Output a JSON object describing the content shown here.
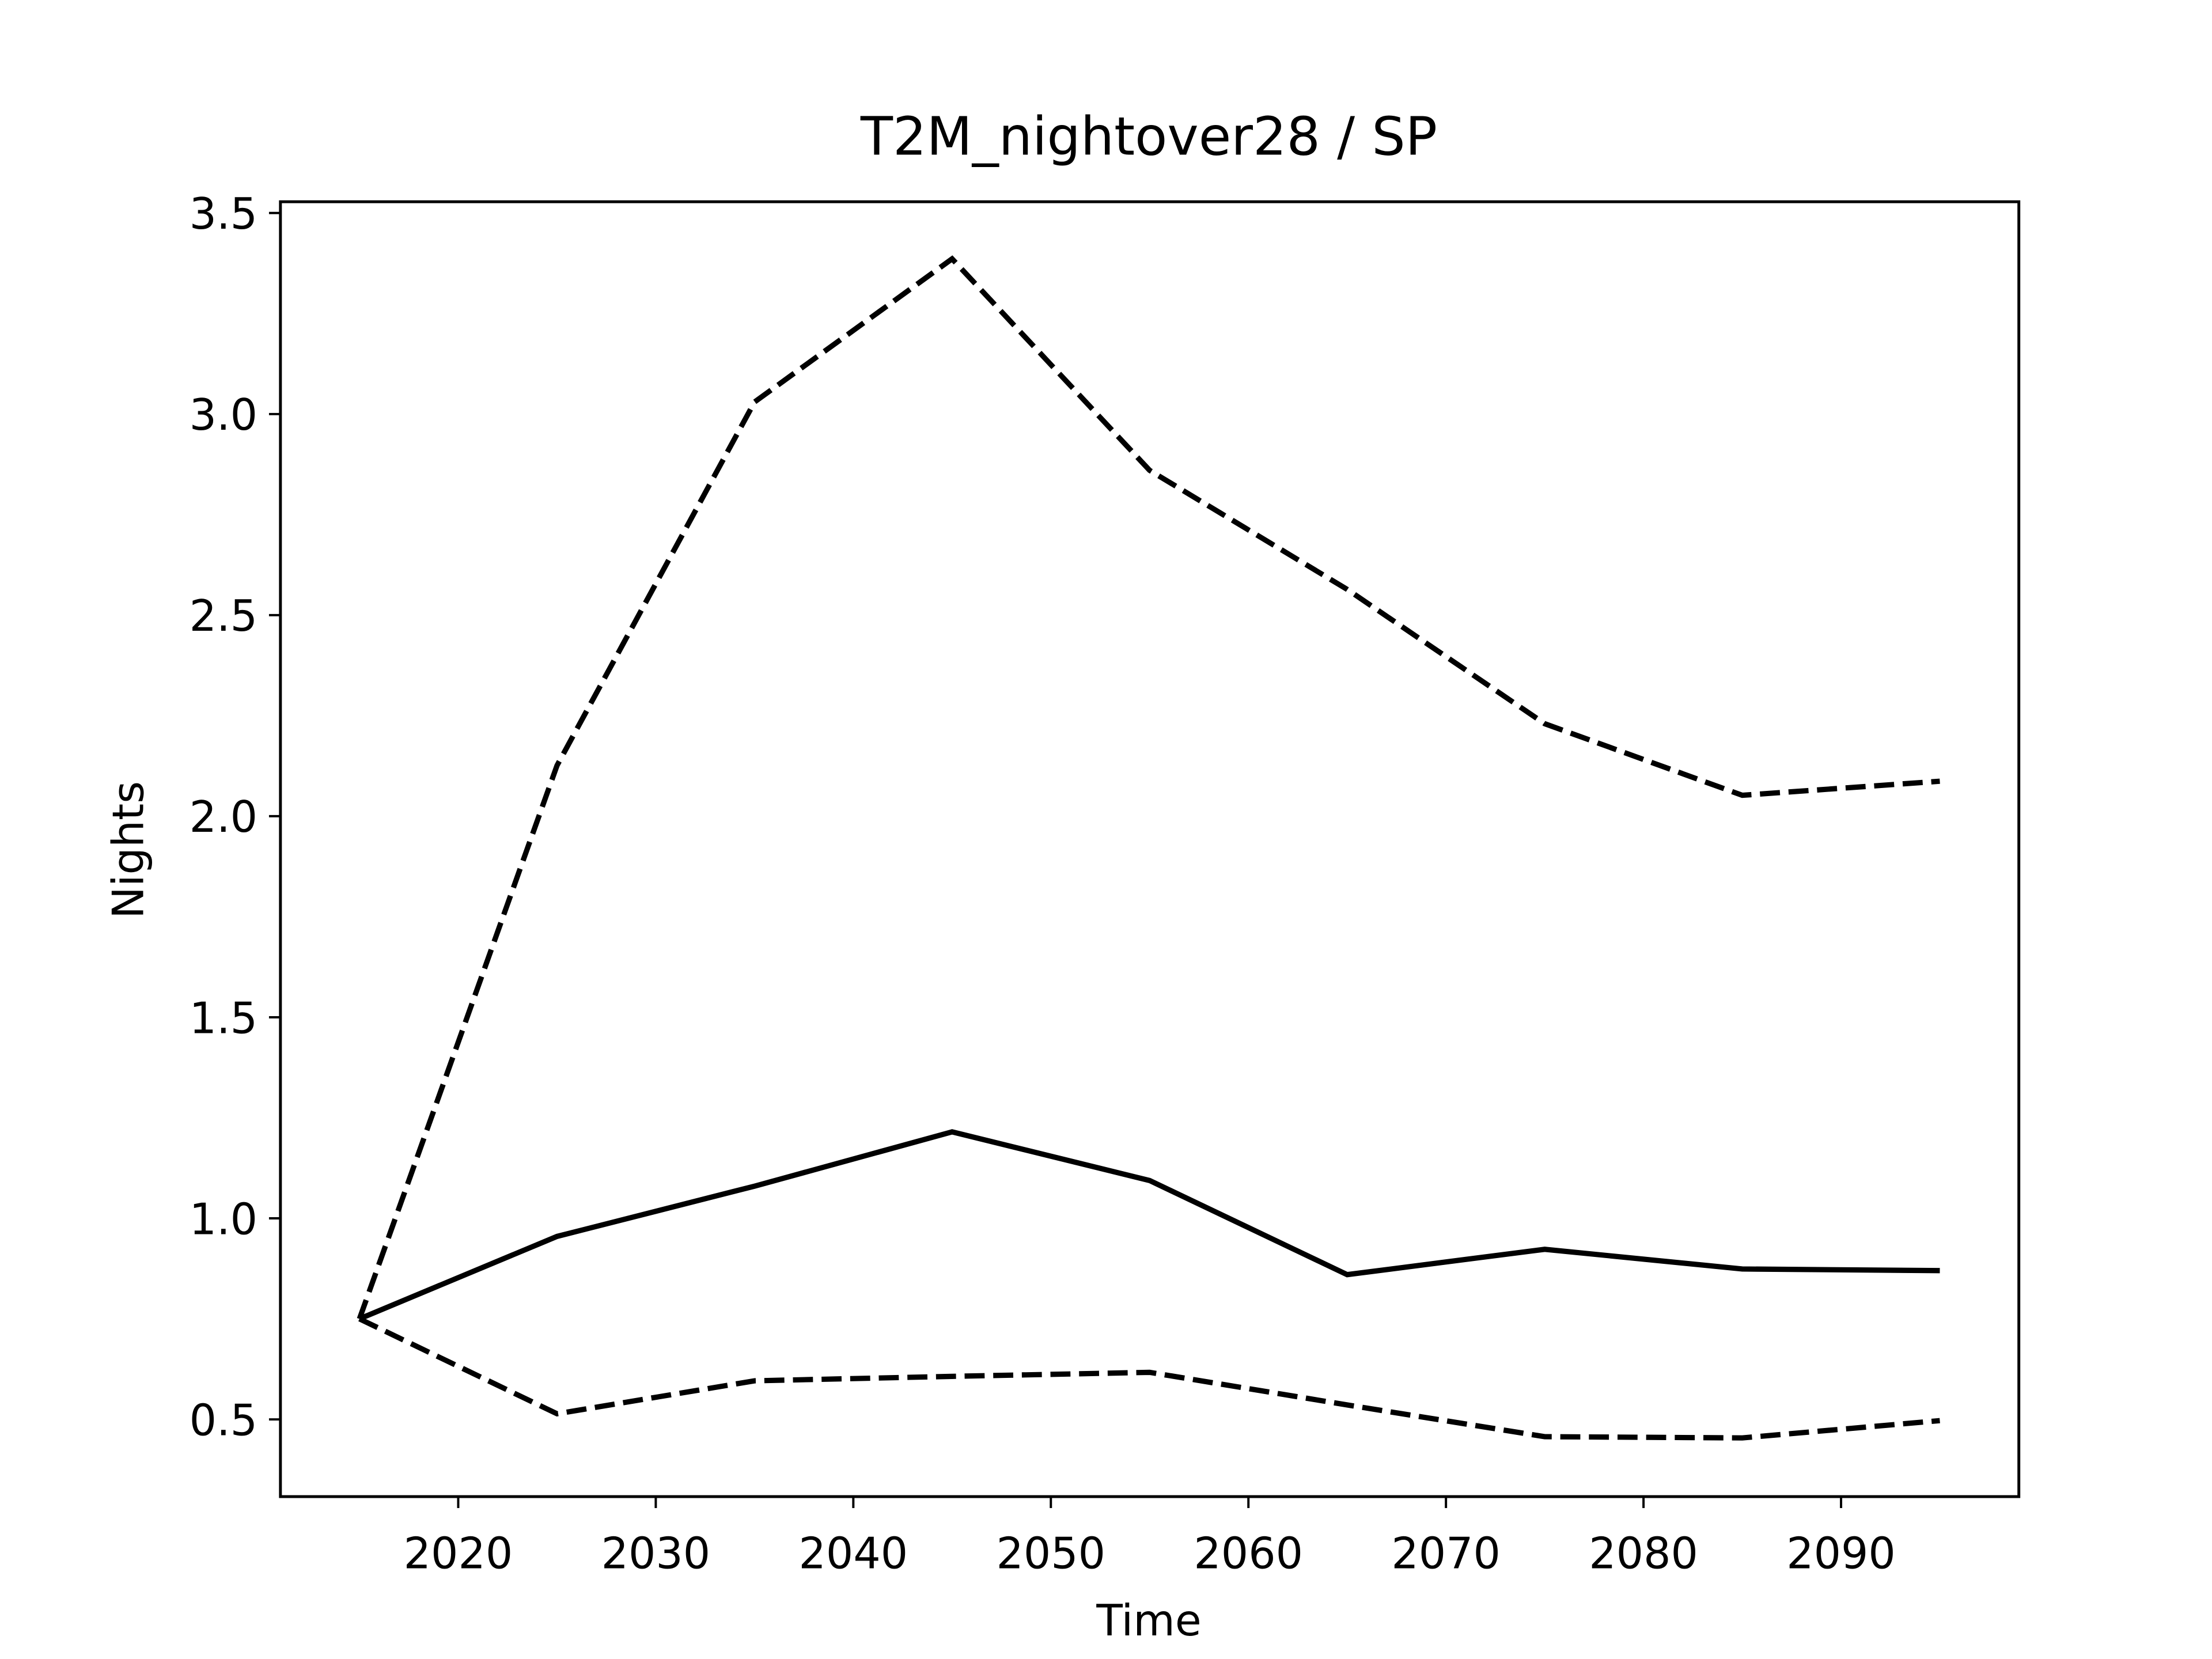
{
  "chart_data": {
    "type": "line",
    "title": "T2M_nightover28 / SP",
    "xlabel": "Time",
    "ylabel": "Nights",
    "x": [
      2015,
      2025,
      2035,
      2045,
      2055,
      2065,
      2075,
      2085,
      2095
    ],
    "series": [
      {
        "color": "#000000",
        "linestyle": "solid",
        "values": [
          0.75,
          0.955,
          1.08,
          1.215,
          1.094,
          0.86,
          0.923,
          0.874,
          0.87
        ]
      },
      {
        "color": "#000000",
        "linestyle": "dashed",
        "values": [
          0.75,
          2.126,
          3.03,
          3.386,
          2.86,
          2.564,
          2.23,
          2.052,
          2.087
        ]
      },
      {
        "color": "#000000",
        "linestyle": "dashed",
        "values": [
          0.75,
          0.514,
          0.596,
          0.607,
          0.617,
          0.536,
          0.457,
          0.454,
          0.497
        ]
      }
    ],
    "xlim": [
      2011,
      2099
    ],
    "ylim": [
      0.308,
      3.528
    ],
    "xticks": [
      2020,
      2030,
      2040,
      2050,
      2060,
      2070,
      2080,
      2090
    ],
    "yticks": [
      0.5,
      {
        "value": 1,
        "label": "1.0"
      },
      1.5,
      {
        "value": 2,
        "label": "2.0"
      },
      2.5,
      {
        "value": 3,
        "label": "3.0"
      },
      3.5
    ],
    "grid": false
  }
}
